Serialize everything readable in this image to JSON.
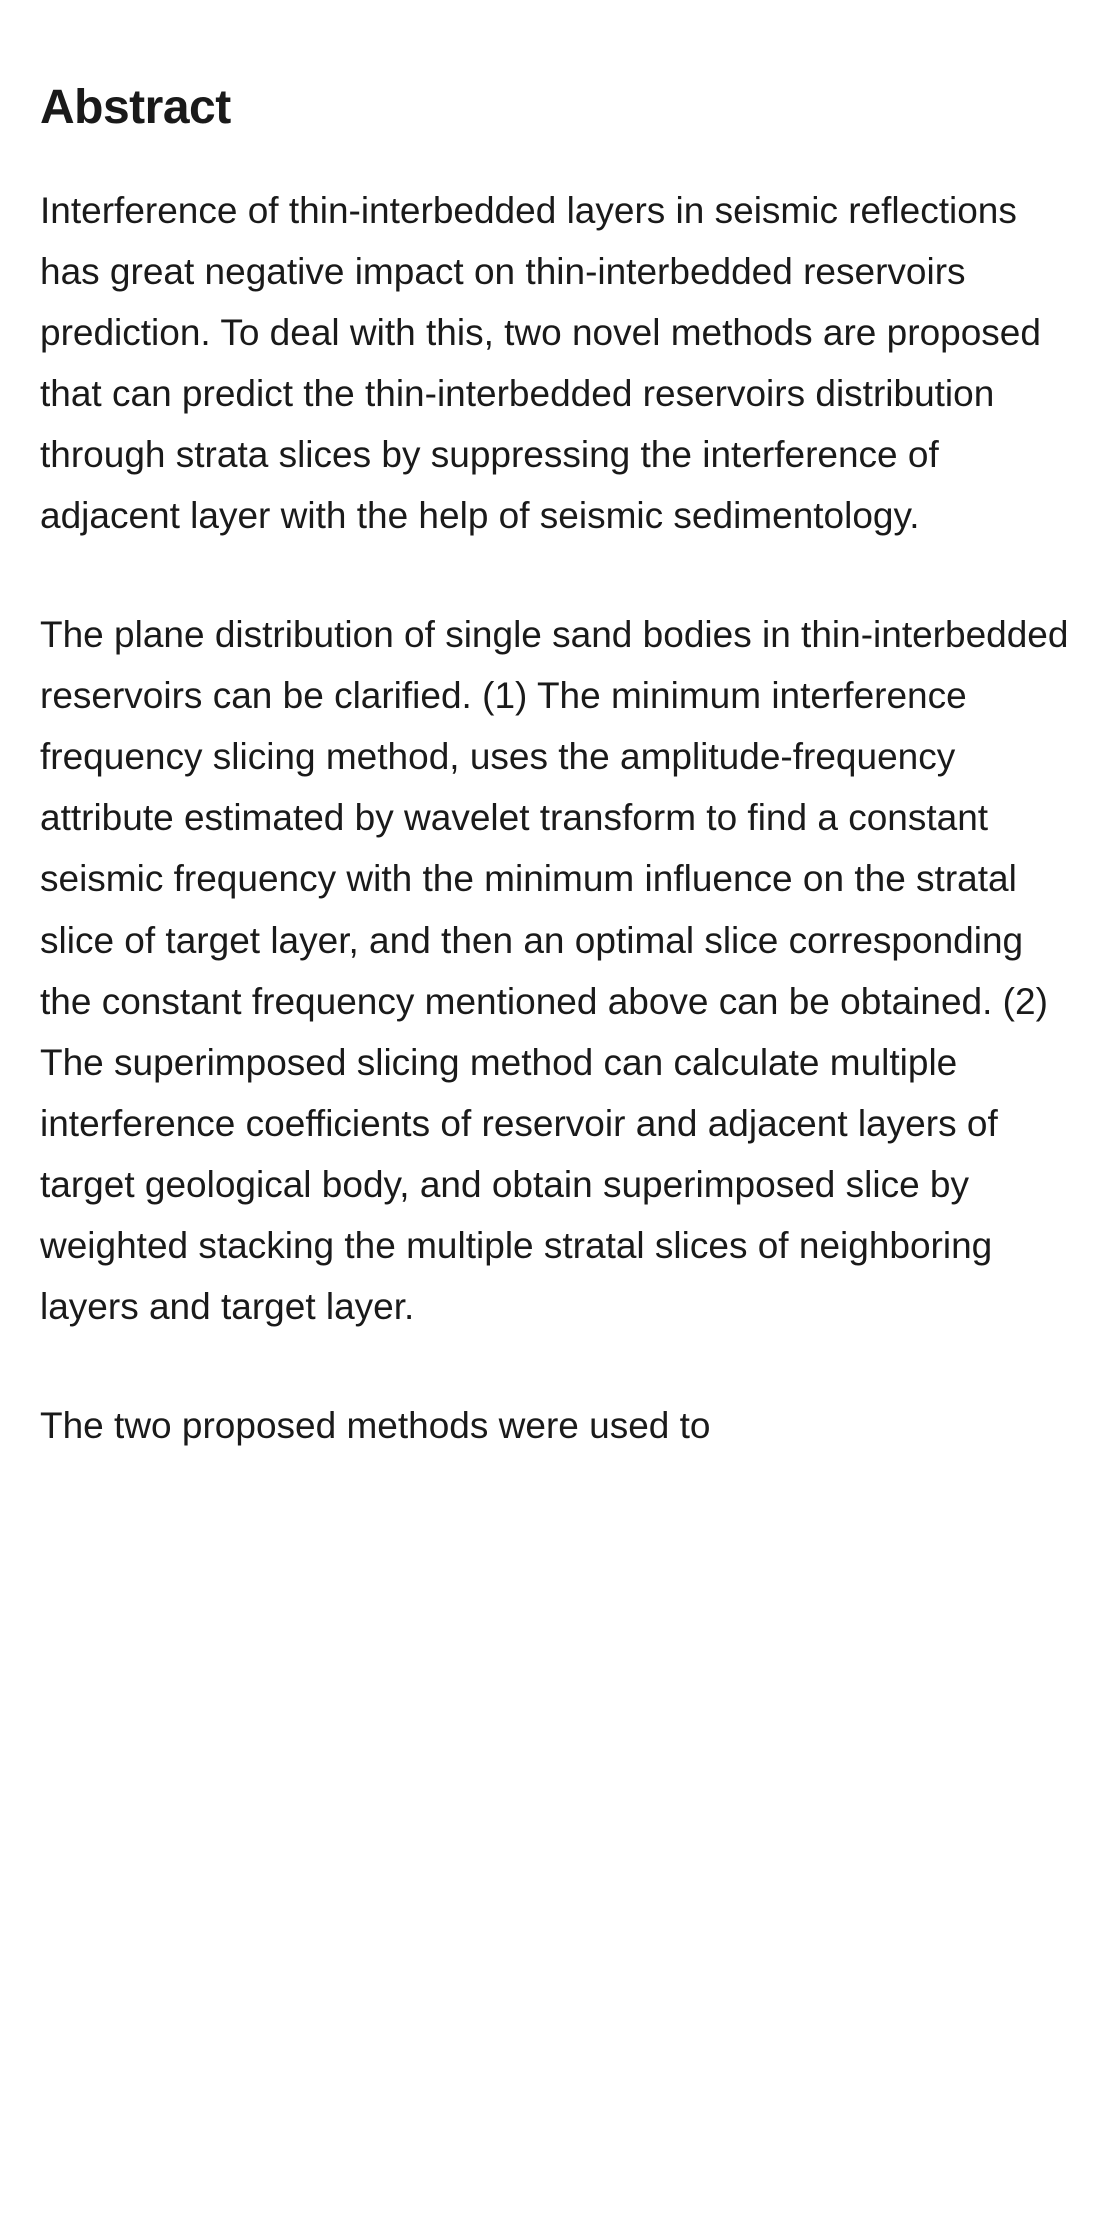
{
  "heading": "Abstract",
  "paragraphs": {
    "p1": "Interference of thin-interbedded layers in seismic reflections has great negative impact on thin-interbedded reservoirs prediction. To deal with this, two novel methods are proposed that can predict the thin-interbedded reservoirs distribution through strata slices by suppressing the interference of adjacent layer with the help of seismic sedimentology.",
    "p2": "The plane distribution of single sand bodies in thin-interbedded reservoirs can be clarified. (1) The minimum interference frequency slicing method, uses the amplitude-frequency attribute estimated by wavelet transform to find a constant seismic frequency with the minimum influence on the stratal slice of target layer, and then an optimal slice corresponding the constant frequency mentioned above can be obtained. (2) The superimposed slicing method can calculate multiple interference coefficients of reservoir and adjacent layers of target geological body, and obtain superimposed slice by weighted stacking the multiple stratal slices of neighboring layers and target layer.",
    "p3": "The two proposed methods were used to"
  }
}
